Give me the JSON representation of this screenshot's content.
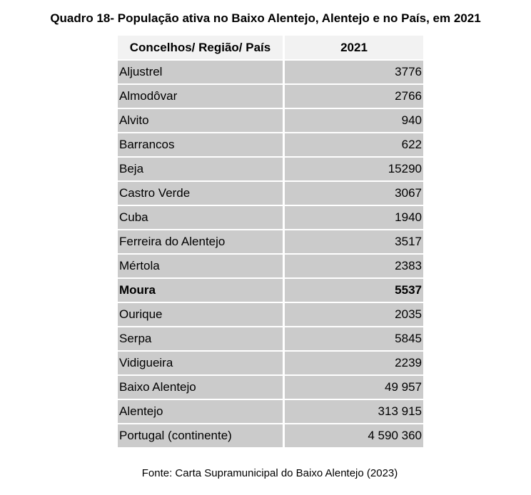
{
  "title": "Quadro 18- População ativa no Baixo Alentejo, Alentejo e no País, em 2021",
  "headers": [
    "Concelhos/ Região/ País",
    "2021"
  ],
  "rows": [
    {
      "name": "Aljustrel",
      "value": "3776"
    },
    {
      "name": "Almodôvar",
      "value": "2766"
    },
    {
      "name": "Alvito",
      "value": "940"
    },
    {
      "name": "Barrancos",
      "value": "622"
    },
    {
      "name": "Beja",
      "value": "15290"
    },
    {
      "name": "Castro Verde",
      "value": "3067"
    },
    {
      "name": "Cuba",
      "value": "1940"
    },
    {
      "name": "Ferreira do Alentejo",
      "value": "3517"
    },
    {
      "name": "Mértola",
      "value": "2383"
    },
    {
      "name": "Moura",
      "value": "5537",
      "bold": true
    },
    {
      "name": "Ourique",
      "value": "2035"
    },
    {
      "name": "Serpa",
      "value": "5845"
    },
    {
      "name": "Vidigueira",
      "value": "2239"
    },
    {
      "name": "Baixo Alentejo",
      "value": "49 957"
    },
    {
      "name": "Alentejo",
      "value": "313 915"
    },
    {
      "name": "Portugal (continente)",
      "value": "4 590 360"
    }
  ],
  "source": "Fonte: Carta Supramunicipal do Baixo Alentejo (2023)"
}
